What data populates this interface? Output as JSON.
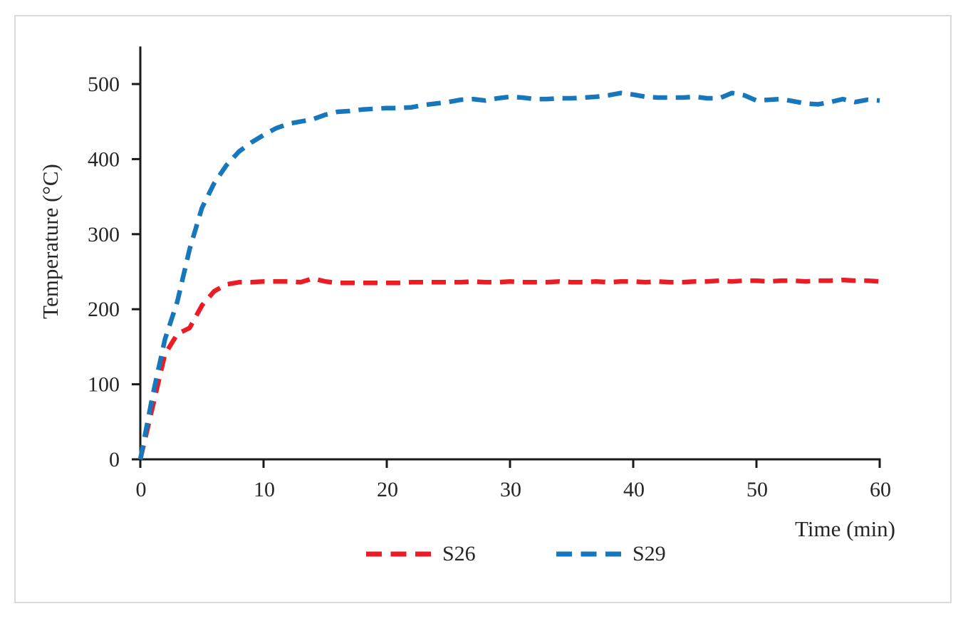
{
  "figure": {
    "background": "#ffffff",
    "frame_border_color": "#d9d9d9",
    "axis_color": "#1a1a1a"
  },
  "chart_data": {
    "type": "line",
    "title": "",
    "xlabel": "Time (min)",
    "ylabel": "Temperature (°C)",
    "xlim": [
      0,
      60
    ],
    "ylim": [
      0,
      550
    ],
    "x_ticks": [
      0,
      10,
      20,
      30,
      40,
      50,
      60
    ],
    "y_ticks": [
      0,
      100,
      200,
      300,
      400,
      500
    ],
    "grid": false,
    "line_style": "dashed",
    "legend_position": "bottom-center",
    "x": [
      0,
      1,
      2,
      3,
      4,
      5,
      6,
      7,
      8,
      9,
      10,
      11,
      12,
      13,
      14,
      15,
      16,
      17,
      18,
      19,
      20,
      21,
      22,
      23,
      24,
      25,
      26,
      27,
      28,
      29,
      30,
      31,
      32,
      33,
      34,
      35,
      36,
      37,
      38,
      39,
      40,
      41,
      42,
      43,
      44,
      45,
      46,
      47,
      48,
      49,
      50,
      51,
      52,
      53,
      54,
      55,
      56,
      57,
      58,
      59,
      60
    ],
    "series": [
      {
        "name": "S26",
        "color": "#ec1c24",
        "values": [
          0,
          70,
          140,
          167,
          175,
          205,
          224,
          233,
          236,
          236,
          237,
          237,
          237,
          236,
          241,
          237,
          235,
          235,
          235,
          235,
          235,
          235,
          236,
          236,
          236,
          236,
          236,
          237,
          236,
          236,
          237,
          236,
          236,
          236,
          237,
          236,
          236,
          237,
          236,
          237,
          237,
          236,
          237,
          236,
          236,
          237,
          237,
          238,
          237,
          238,
          238,
          237,
          238,
          238,
          237,
          238,
          238,
          239,
          238,
          238,
          237
        ]
      },
      {
        "name": "S29",
        "color": "#1777bd",
        "values": [
          0,
          85,
          160,
          210,
          280,
          335,
          368,
          392,
          410,
          422,
          432,
          441,
          447,
          450,
          453,
          459,
          463,
          464,
          466,
          467,
          468,
          468,
          469,
          472,
          474,
          476,
          479,
          480,
          478,
          481,
          483,
          482,
          480,
          480,
          481,
          481,
          482,
          483,
          485,
          488,
          486,
          483,
          482,
          482,
          482,
          483,
          481,
          481,
          488,
          485,
          478,
          479,
          480,
          477,
          474,
          473,
          476,
          480,
          476,
          479,
          478
        ]
      }
    ]
  }
}
